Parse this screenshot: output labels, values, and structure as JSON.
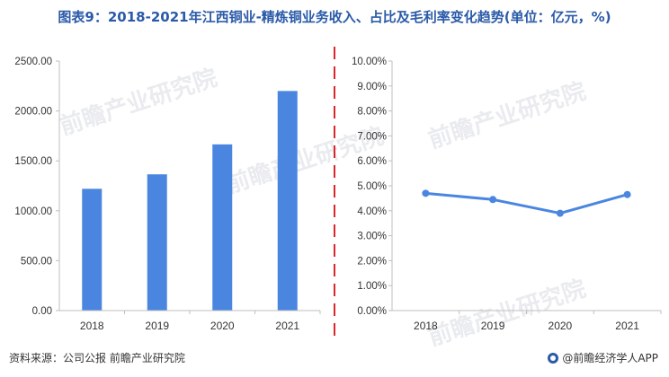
{
  "title": "图表9：2018-2021年江西铜业-精炼铜业务收入、占比及毛利率变化趋势(单位：亿元，%)",
  "footer": {
    "source": "资料来源：公司公报 前瞻产业研究院",
    "app_credit": "@前瞻经济学人APP"
  },
  "watermark": "前瞻产业研究院",
  "colors": {
    "bar": "#4a86e0",
    "line": "#4a86e0",
    "title": "#2a5aa8",
    "divider": "#d9262c"
  },
  "chart_data": [
    {
      "type": "bar",
      "categories": [
        "2018",
        "2019",
        "2020",
        "2021"
      ],
      "values": [
        1220,
        1365,
        1665,
        2200
      ],
      "ylim": [
        0,
        2500
      ],
      "yticks": [
        "0.00",
        "500.00",
        "1000.00",
        "1500.00",
        "2000.00",
        "2500.00"
      ],
      "grid": false
    },
    {
      "type": "line",
      "categories": [
        "2018",
        "2019",
        "2020",
        "2021"
      ],
      "values": [
        4.7,
        4.45,
        3.9,
        4.65
      ],
      "ylim": [
        0,
        10
      ],
      "yticks": [
        "0.00%",
        "1.00%",
        "2.00%",
        "3.00%",
        "4.00%",
        "5.00%",
        "6.00%",
        "7.00%",
        "8.00%",
        "9.00%",
        "10.00%"
      ],
      "grid": false
    }
  ]
}
